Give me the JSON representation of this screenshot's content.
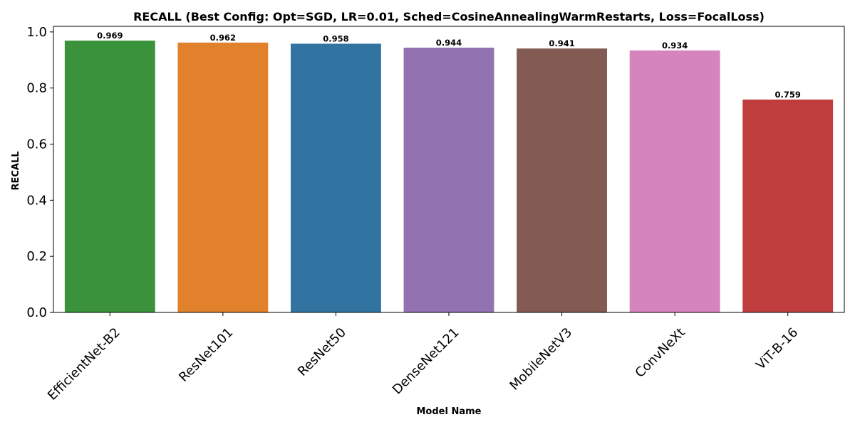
{
  "chart_data": {
    "type": "bar",
    "title": "RECALL (Best Config: Opt=SGD, LR=0.01, Sched=CosineAnnealingWarmRestarts, Loss=FocalLoss)",
    "xlabel": "Model Name",
    "ylabel": "RECALL",
    "categories": [
      "EfficientNet-B2",
      "ResNet101",
      "ResNet50",
      "DenseNet121",
      "MobileNetV3",
      "ConvNeXt",
      "ViT-B-16"
    ],
    "values": [
      0.969,
      0.962,
      0.958,
      0.944,
      0.941,
      0.934,
      0.759
    ],
    "value_labels": [
      "0.969",
      "0.962",
      "0.958",
      "0.944",
      "0.941",
      "0.934",
      "0.759"
    ],
    "colors": [
      "#3a923a",
      "#e1812c",
      "#3274a1",
      "#9372b2",
      "#845b53",
      "#d684bd",
      "#c03d3e"
    ],
    "ylim": [
      0,
      1.02
    ],
    "yticks": [
      0.0,
      0.2,
      0.4,
      0.6,
      0.8,
      1.0
    ],
    "ytick_labels": [
      "0.0",
      "0.2",
      "0.4",
      "0.6",
      "0.8",
      "1.0"
    ],
    "grid": false,
    "legend": "none"
  }
}
